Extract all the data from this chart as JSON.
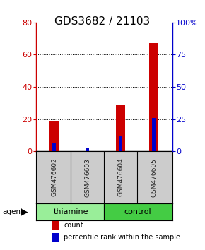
{
  "title": "GDS3682 / 21103",
  "samples": [
    "GSM476602",
    "GSM476603",
    "GSM476604",
    "GSM476605"
  ],
  "count_values": [
    19,
    0,
    29,
    67
  ],
  "percentile_values": [
    6,
    2,
    12,
    26
  ],
  "left_ylim": [
    0,
    80
  ],
  "left_yticks": [
    0,
    20,
    40,
    60,
    80
  ],
  "right_ylim": [
    0,
    100
  ],
  "right_yticks": [
    0,
    25,
    50,
    75,
    100
  ],
  "right_yticklabels": [
    "0",
    "25",
    "50",
    "75",
    "100%"
  ],
  "count_color": "#cc0000",
  "percentile_color": "#0000cc",
  "group_labels": [
    "thiamine",
    "control"
  ],
  "thiamine_color": "#99ee99",
  "control_color": "#44cc44",
  "sample_label_color": "#222222",
  "agent_label": "agent",
  "legend_items": [
    "count",
    "percentile rank within the sample"
  ],
  "title_fontsize": 11,
  "tick_fontsize": 8,
  "left_tick_color": "#cc0000",
  "right_tick_color": "#0000cc",
  "grid_yticks": [
    20,
    40,
    60
  ]
}
